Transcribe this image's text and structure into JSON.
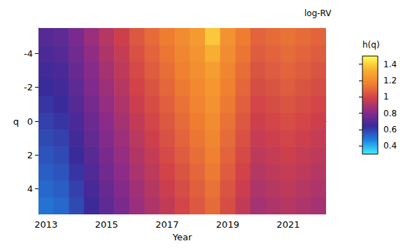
{
  "chart_data": {
    "type": "heatmap",
    "title": "log-RV",
    "x_label": "Year",
    "y_label": "q",
    "x": [
      2013,
      2013.5,
      2014,
      2014.5,
      2015,
      2015.5,
      2016,
      2016.5,
      2017,
      2017.5,
      2018,
      2018.5,
      2019,
      2019.5,
      2020,
      2020.5,
      2021,
      2021.5,
      2022
    ],
    "y": [
      -5,
      -4,
      -3,
      -2,
      -1,
      0,
      1,
      2,
      3,
      4,
      5
    ],
    "values": [
      [
        0.7,
        0.72,
        0.78,
        0.85,
        0.92,
        0.98,
        1.05,
        1.1,
        1.15,
        1.2,
        1.25,
        1.38,
        1.22,
        1.15,
        1.08,
        1.1,
        1.12,
        1.1,
        1.08
      ],
      [
        0.68,
        0.7,
        0.76,
        0.83,
        0.9,
        0.96,
        1.03,
        1.08,
        1.13,
        1.18,
        1.23,
        1.32,
        1.2,
        1.13,
        1.06,
        1.08,
        1.1,
        1.08,
        1.06
      ],
      [
        0.66,
        0.68,
        0.74,
        0.81,
        0.88,
        0.94,
        1.01,
        1.06,
        1.11,
        1.16,
        1.21,
        1.26,
        1.18,
        1.11,
        1.04,
        1.06,
        1.08,
        1.06,
        1.04
      ],
      [
        0.64,
        0.66,
        0.72,
        0.79,
        0.86,
        0.92,
        0.99,
        1.04,
        1.09,
        1.14,
        1.19,
        1.24,
        1.16,
        1.09,
        1.02,
        1.04,
        1.06,
        1.04,
        1.02
      ],
      [
        0.62,
        0.64,
        0.7,
        0.77,
        0.84,
        0.9,
        0.97,
        1.02,
        1.07,
        1.12,
        1.17,
        1.22,
        1.14,
        1.07,
        1.0,
        1.02,
        1.04,
        1.02,
        1.0
      ],
      [
        0.6,
        0.62,
        0.68,
        0.75,
        0.82,
        0.88,
        0.95,
        1.0,
        1.05,
        1.1,
        1.15,
        1.2,
        1.12,
        1.05,
        0.98,
        1.0,
        1.02,
        1.0,
        0.98
      ],
      [
        0.58,
        0.6,
        0.66,
        0.73,
        0.8,
        0.86,
        0.93,
        0.98,
        1.03,
        1.08,
        1.13,
        1.18,
        1.1,
        1.03,
        0.96,
        0.98,
        1.0,
        0.98,
        0.96
      ],
      [
        0.56,
        0.58,
        0.64,
        0.71,
        0.78,
        0.84,
        0.91,
        0.96,
        1.01,
        1.06,
        1.11,
        1.16,
        1.08,
        1.01,
        0.94,
        0.96,
        0.98,
        0.96,
        0.94
      ],
      [
        0.54,
        0.56,
        0.62,
        0.69,
        0.76,
        0.82,
        0.89,
        0.94,
        0.99,
        1.04,
        1.09,
        1.14,
        1.06,
        0.99,
        0.92,
        0.94,
        0.96,
        0.94,
        0.92
      ],
      [
        0.52,
        0.54,
        0.6,
        0.67,
        0.74,
        0.8,
        0.87,
        0.92,
        0.97,
        1.02,
        1.07,
        1.12,
        1.04,
        0.97,
        0.9,
        0.92,
        0.94,
        0.92,
        0.9
      ],
      [
        0.5,
        0.52,
        0.58,
        0.65,
        0.72,
        0.78,
        0.85,
        0.9,
        0.95,
        1.0,
        1.05,
        1.1,
        1.02,
        0.95,
        0.88,
        0.9,
        0.92,
        0.9,
        0.88
      ]
    ],
    "xlim": [
      2012.75,
      2022.25
    ],
    "xticks": [
      2013,
      2015,
      2017,
      2019,
      2021
    ],
    "ylim": [
      -5.5,
      5.5
    ],
    "yticks": [
      -4,
      -2,
      0,
      2,
      4
    ],
    "colorbar": {
      "label": "h(q)",
      "range": [
        0.3,
        1.5
      ],
      "ticks": [
        0.4,
        0.6,
        0.8,
        1,
        1.2,
        1.4
      ]
    }
  }
}
